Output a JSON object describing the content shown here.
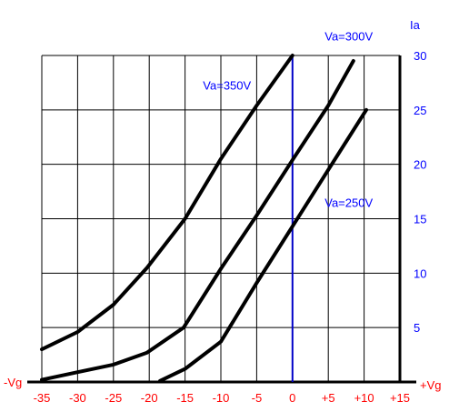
{
  "chart_data": {
    "type": "line",
    "title": "",
    "xlabel_left": "-Vg",
    "xlabel_right": "+Vg",
    "ylabel": "Ia",
    "xlim": [
      -35,
      15
    ],
    "ylim": [
      0,
      30
    ],
    "grid": true,
    "x_ticks": [
      -35,
      -30,
      -25,
      -20,
      -15,
      -10,
      -5,
      0,
      5,
      10,
      15
    ],
    "x_tick_labels": [
      "-35",
      "-30",
      "-25",
      "-20",
      "-15",
      "-10",
      "-5",
      "0",
      "+5",
      "+10",
      "+15"
    ],
    "y_ticks": [
      5,
      10,
      15,
      20,
      25,
      30
    ],
    "y_tick_labels": [
      "5",
      "10",
      "15",
      "20",
      "25",
      "30"
    ],
    "zero_line_x": 0,
    "series": [
      {
        "name": "Va=350V",
        "x": [
          -35,
          -30,
          -25,
          -20.3,
          -15,
          -10,
          -5,
          0
        ],
        "y": [
          3.0,
          4.6,
          7.1,
          10.5,
          15.0,
          20.5,
          25.4,
          30.0
        ]
      },
      {
        "name": "Va=300V",
        "x": [
          -35,
          -30,
          -25,
          -20.3,
          -15.2,
          -10,
          -5,
          0,
          5,
          8.5
        ],
        "y": [
          0.2,
          0.9,
          1.6,
          2.7,
          5.0,
          10.4,
          15.3,
          20.4,
          25.4,
          29.5
        ]
      },
      {
        "name": "Va=250V",
        "x": [
          -18.5,
          -15,
          -10,
          -5,
          0,
          5,
          10.3
        ],
        "y": [
          0.1,
          1.2,
          3.7,
          9.1,
          14.3,
          19.5,
          25.0
        ]
      }
    ],
    "series_labels": [
      {
        "text": "Va=350V",
        "x": -12.5,
        "y": 27.3
      },
      {
        "text": "Va=300V",
        "x": 4.5,
        "y": 31.8
      },
      {
        "text": "Va=250V",
        "x": 4.5,
        "y": 16.5
      }
    ],
    "colors": {
      "axis_text": "#ff0000",
      "y_tick_text": "#0000ff",
      "series_label_text": "#0000ff",
      "zero_line": "#0000c8",
      "curves": "#000000",
      "grid": "#000000"
    }
  }
}
